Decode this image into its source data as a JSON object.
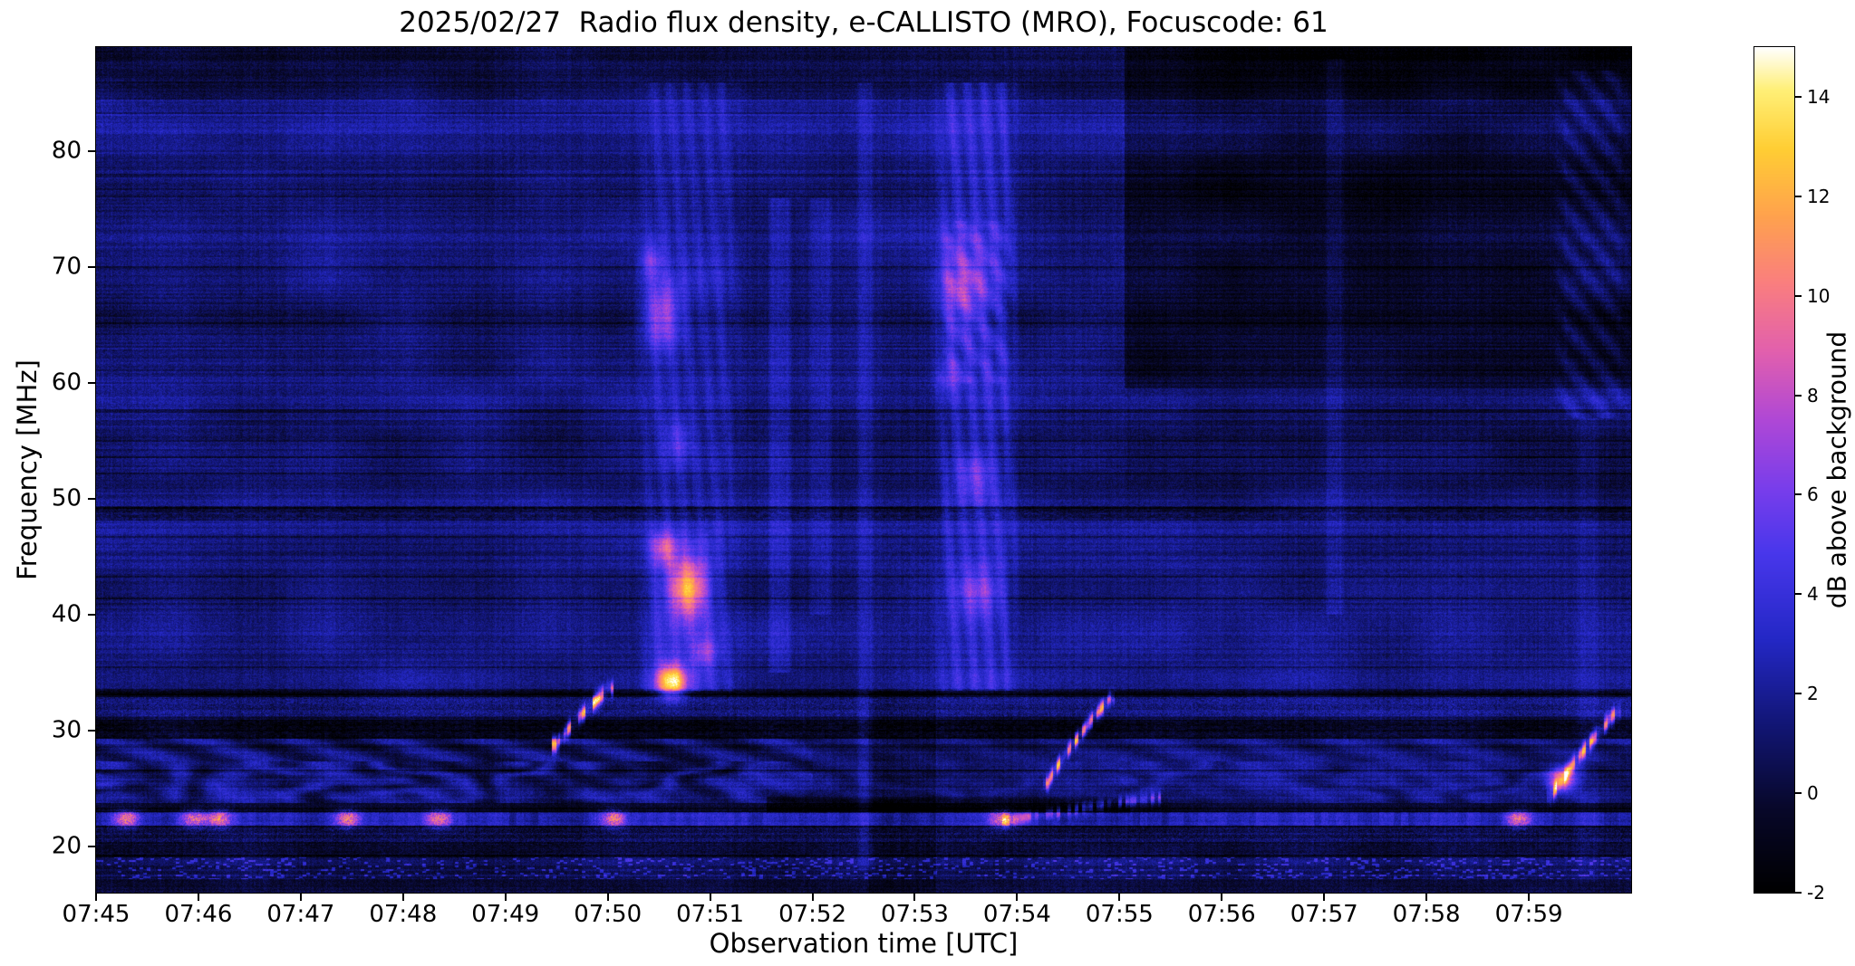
{
  "chart_data": {
    "type": "heatmap",
    "title": "2025/02/27  Radio flux density, e-CALLISTO (MRO), Focuscode: 61",
    "xlabel": "Observation time [UTC]",
    "ylabel": "Frequency [MHz]",
    "x_ticks": [
      "07:45",
      "07:46",
      "07:47",
      "07:48",
      "07:49",
      "07:50",
      "07:51",
      "07:52",
      "07:53",
      "07:54",
      "07:55",
      "07:56",
      "07:57",
      "07:58",
      "07:59"
    ],
    "x_span_minutes": 15,
    "y_ticks": [
      20,
      30,
      40,
      50,
      60,
      70,
      80
    ],
    "freq_range_mhz": [
      16,
      89
    ],
    "value_range_db": [
      -2,
      15
    ],
    "grid": false,
    "colorbar": {
      "label": "dB above background",
      "ticks": [
        -2,
        0,
        2,
        4,
        6,
        8,
        10,
        12,
        14
      ],
      "colormap_stops": [
        [
          0.0,
          0,
          0,
          0
        ],
        [
          0.1,
          8,
          8,
          42
        ],
        [
          0.2,
          18,
          22,
          118
        ],
        [
          0.3,
          36,
          40,
          198
        ],
        [
          0.4,
          72,
          55,
          235
        ],
        [
          0.48,
          122,
          62,
          235
        ],
        [
          0.56,
          176,
          72,
          214
        ],
        [
          0.64,
          226,
          96,
          174
        ],
        [
          0.72,
          250,
          126,
          128
        ],
        [
          0.8,
          255,
          162,
          78
        ],
        [
          0.88,
          255,
          206,
          52
        ],
        [
          0.95,
          255,
          240,
          120
        ],
        [
          1.0,
          255,
          255,
          255
        ]
      ]
    },
    "texture": {
      "base_high": 1.3,
      "base_low": 1.0,
      "split_mhz": 33.5,
      "speckle": 1.6,
      "row_stripe": 1.1,
      "dark_row_chance": 0.1,
      "dark_row_amp": 1.0,
      "col_flicker": 0.5,
      "wave1_amp": 0.4,
      "wave1_k": 0.55,
      "wave2_amp": 0.2,
      "wave2_k": 1.3,
      "smooth_amp": 1.2
    },
    "bands": [
      {
        "f0": 84.5,
        "f1": 89.0,
        "amp": -0.9,
        "style": "flat"
      },
      {
        "f0": 79.5,
        "f1": 84.5,
        "amp": 0.5,
        "style": "flat"
      },
      {
        "f0": 58.9,
        "f1": 59.5,
        "amp": -0.6,
        "style": "flat"
      },
      {
        "f0": 48.2,
        "f1": 49.4,
        "amp": -2.2,
        "style": "dotted-dark"
      },
      {
        "f0": 32.9,
        "f1": 33.6,
        "amp": -1.6,
        "style": "dotted-dark"
      },
      {
        "f0": 31.3,
        "f1": 32.9,
        "amp": 1.0,
        "style": "speckle"
      },
      {
        "f0": 29.3,
        "f1": 31.0,
        "amp": -2.4,
        "style": "dotted-dark"
      },
      {
        "f0": 27.4,
        "f1": 29.3,
        "amp": 1.2,
        "style": "scallop"
      },
      {
        "f0": 23.8,
        "f1": 27.4,
        "amp": 1.1,
        "style": "scallop2"
      },
      {
        "f0": 23.0,
        "f1": 23.8,
        "amp": -1.7,
        "style": "flat"
      },
      {
        "f0": 21.8,
        "f1": 23.0,
        "amp": 2.2,
        "style": "hotline"
      },
      {
        "f0": 20.2,
        "f1": 21.8,
        "amp": -0.4,
        "style": "speckle"
      },
      {
        "f0": 19.1,
        "f1": 20.2,
        "amp": -1.3,
        "style": "dotted-dark"
      },
      {
        "f0": 17.2,
        "f1": 19.1,
        "amp": 0.3,
        "style": "speckle-bright"
      },
      {
        "f0": 16.0,
        "f1": 17.2,
        "amp": -0.8,
        "style": "flat"
      }
    ],
    "regions": [
      {
        "t0": 10.05,
        "t1": 15.0,
        "f0": 59.6,
        "f1": 89.0,
        "amp": -1.7
      },
      {
        "t0": 10.05,
        "t1": 15.0,
        "f0": 49.4,
        "f1": 59.6,
        "amp": -0.35
      },
      {
        "t0": 6.55,
        "t1": 10.1,
        "f0": 22.9,
        "f1": 24.3,
        "amp": -1.4
      },
      {
        "t0": 7.55,
        "t1": 8.2,
        "f0": 16.0,
        "f1": 33.5,
        "amp": -0.9
      },
      {
        "t0": 0.0,
        "t1": 15.0,
        "f0": 33.6,
        "f1": 48.2,
        "amp": 0.15
      }
    ],
    "burst_columns": [
      {
        "t0": 5.25,
        "t1": 6.35,
        "f0": 33.5,
        "f1": 86.0,
        "amp": 1.5,
        "ripple": true
      },
      {
        "t0": 5.3,
        "t1": 6.1,
        "f0": 33.5,
        "f1": 47.0,
        "amp": 1.0
      },
      {
        "t0": 6.55,
        "t1": 6.8,
        "f0": 35.0,
        "f1": 76.0,
        "amp": 1.3
      },
      {
        "t0": 6.95,
        "t1": 7.2,
        "f0": 40.0,
        "f1": 76.0,
        "amp": 0.9
      },
      {
        "t0": 7.42,
        "t1": 7.6,
        "f0": 18.0,
        "f1": 86.0,
        "amp": 1.1
      },
      {
        "t0": 8.15,
        "t1": 9.05,
        "f0": 33.5,
        "f1": 86.0,
        "amp": 2.2,
        "ripple": true
      },
      {
        "t0": 8.2,
        "t1": 9.0,
        "f0": 60.0,
        "f1": 74.0,
        "amp": 1.2,
        "wavy": true
      },
      {
        "t0": 12.0,
        "t1": 12.2,
        "f0": 40.0,
        "f1": 88.0,
        "amp": 1.0
      },
      {
        "t0": 14.2,
        "t1": 15.0,
        "f0": 57.0,
        "f1": 87.0,
        "amp": 1.4,
        "wavy": true
      },
      {
        "t0": 14.45,
        "t1": 14.7,
        "f0": 17.0,
        "f1": 57.0,
        "amp": 0.7
      }
    ],
    "bright_blobs": [
      {
        "t": 5.62,
        "f": 34.3,
        "st": 0.1,
        "sf": 1.0,
        "amp": 11.0
      },
      {
        "t": 5.78,
        "f": 42.3,
        "st": 0.13,
        "sf": 1.7,
        "amp": 9.5
      },
      {
        "t": 5.55,
        "f": 45.8,
        "st": 0.09,
        "sf": 1.0,
        "amp": 5.0
      },
      {
        "t": 5.52,
        "f": 65.8,
        "st": 0.13,
        "sf": 2.0,
        "amp": 5.5
      },
      {
        "t": 5.42,
        "f": 70.5,
        "st": 0.08,
        "sf": 1.1,
        "amp": 3.5
      },
      {
        "t": 5.95,
        "f": 36.8,
        "st": 0.08,
        "sf": 0.9,
        "amp": 3.2
      },
      {
        "t": 5.68,
        "f": 55.0,
        "st": 0.1,
        "sf": 1.4,
        "amp": 2.6
      },
      {
        "t": 8.45,
        "f": 68.0,
        "st": 0.18,
        "sf": 2.6,
        "amp": 4.0
      },
      {
        "t": 8.58,
        "f": 52.0,
        "st": 0.14,
        "sf": 1.5,
        "amp": 3.4
      },
      {
        "t": 8.62,
        "f": 42.0,
        "st": 0.16,
        "sf": 1.5,
        "amp": 4.0
      },
      {
        "t": 8.32,
        "f": 60.5,
        "st": 0.1,
        "sf": 1.1,
        "amp": 2.4
      },
      {
        "t": 14.32,
        "f": 25.8,
        "st": 0.1,
        "sf": 0.7,
        "amp": 10.0
      }
    ],
    "drifting_bursts": [
      {
        "t0": 4.5,
        "t1": 5.0,
        "f0": 28.8,
        "f1": 33.6,
        "amp": 10.5,
        "w": 0.45
      },
      {
        "t0": 9.3,
        "t1": 9.9,
        "f0": 25.5,
        "f1": 32.8,
        "amp": 9.5,
        "w": 0.42
      },
      {
        "t0": 14.22,
        "t1": 14.85,
        "f0": 24.3,
        "f1": 31.6,
        "amp": 9.5,
        "w": 0.45
      },
      {
        "t0": 8.9,
        "t1": 10.35,
        "f0": 22.2,
        "f1": 24.2,
        "amp": 4.5,
        "w": 0.35
      }
    ],
    "hotline_spots": {
      "freq": 22.4,
      "st": 0.09,
      "sf": 0.5,
      "amp": 7.5,
      "times": [
        0.3,
        0.95,
        1.2,
        2.45,
        3.35,
        5.05,
        8.85,
        13.9
      ]
    }
  }
}
